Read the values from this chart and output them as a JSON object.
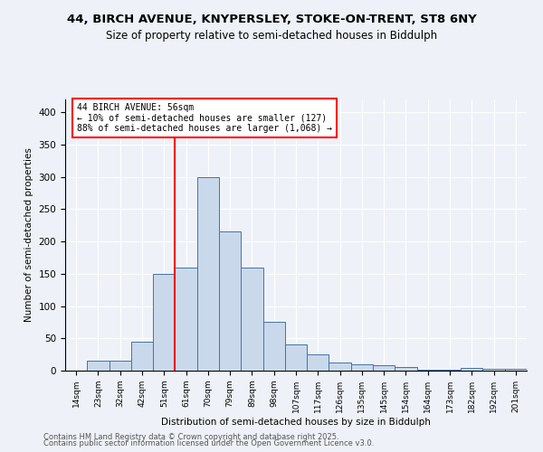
{
  "title_line1": "44, BIRCH AVENUE, KNYPERSLEY, STOKE-ON-TRENT, ST8 6NY",
  "title_line2": "Size of property relative to semi-detached houses in Biddulph",
  "xlabel": "Distribution of semi-detached houses by size in Biddulph",
  "ylabel": "Number of semi-detached properties",
  "annotation_title": "44 BIRCH AVENUE: 56sqm",
  "annotation_line1": "← 10% of semi-detached houses are smaller (127)",
  "annotation_line2": "88% of semi-detached houses are larger (1,068) →",
  "categories": [
    "14sqm",
    "23sqm",
    "32sqm",
    "42sqm",
    "51sqm",
    "61sqm",
    "70sqm",
    "79sqm",
    "89sqm",
    "98sqm",
    "107sqm",
    "117sqm",
    "126sqm",
    "135sqm",
    "145sqm",
    "154sqm",
    "164sqm",
    "173sqm",
    "182sqm",
    "192sqm",
    "201sqm"
  ],
  "values": [
    0,
    15,
    15,
    45,
    150,
    160,
    300,
    215,
    160,
    75,
    40,
    25,
    13,
    10,
    8,
    5,
    2,
    2,
    4,
    3,
    3
  ],
  "bar_color": "#c9d9eb",
  "bar_edge_color": "#4472a8",
  "vline_x": 4.5,
  "vline_color": "red",
  "ylim": [
    0,
    420
  ],
  "yticks": [
    0,
    50,
    100,
    150,
    200,
    250,
    300,
    350,
    400
  ],
  "background_color": "#eef2f8",
  "footer_line1": "Contains HM Land Registry data © Crown copyright and database right 2025.",
  "footer_line2": "Contains public sector information licensed under the Open Government Licence v3.0.",
  "title_fontsize": 9.5,
  "subtitle_fontsize": 8.5
}
